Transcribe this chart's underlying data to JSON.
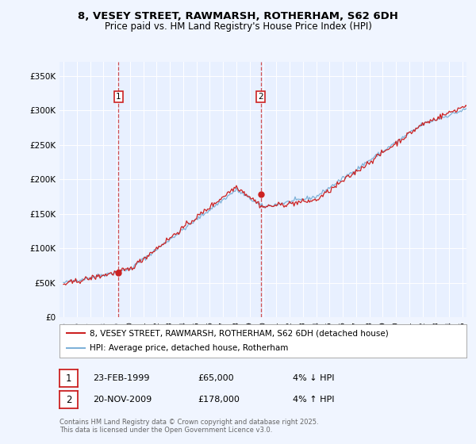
{
  "title": "8, VESEY STREET, RAWMARSH, ROTHERHAM, S62 6DH",
  "subtitle": "Price paid vs. HM Land Registry's House Price Index (HPI)",
  "background_color": "#f0f5ff",
  "plot_bg_color": "#e8f0ff",
  "legend_line1": "8, VESEY STREET, RAWMARSH, ROTHERHAM, S62 6DH (detached house)",
  "legend_line2": "HPI: Average price, detached house, Rotherham",
  "sale1_date": "23-FEB-1999",
  "sale1_price": 65000,
  "sale1_hpi": "4% ↓ HPI",
  "sale2_date": "20-NOV-2009",
  "sale2_price": 178000,
  "sale2_hpi": "4% ↑ HPI",
  "footer": "Contains HM Land Registry data © Crown copyright and database right 2025.\nThis data is licensed under the Open Government Licence v3.0.",
  "hpi_color": "#7fb2d8",
  "price_color": "#cc2222",
  "dashed_line_color": "#cc3333",
  "ylim": [
    0,
    370000
  ],
  "yticks": [
    0,
    50000,
    100000,
    150000,
    200000,
    250000,
    300000,
    350000
  ],
  "ytick_labels": [
    "£0",
    "£50K",
    "£100K",
    "£150K",
    "£200K",
    "£250K",
    "£300K",
    "£350K"
  ],
  "xstart": 1995,
  "xend": 2025,
  "sale1_x": 1999.125,
  "sale2_x": 2009.833
}
